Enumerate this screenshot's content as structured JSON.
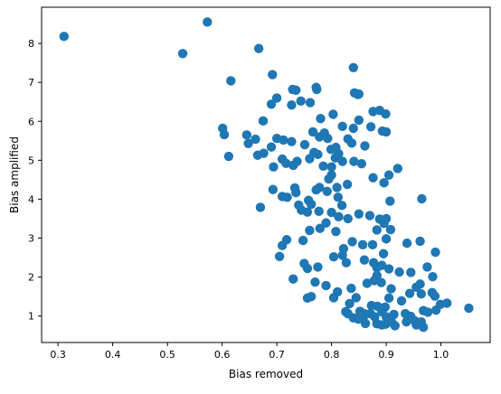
{
  "chart_data": {
    "type": "scatter",
    "title": "",
    "xlabel": "Bias removed",
    "ylabel": "Bias amplified",
    "xlim": [
      0.27,
      1.09
    ],
    "ylim": [
      0.32,
      8.93
    ],
    "xticks": [
      0.3,
      0.4,
      0.5,
      0.6,
      0.7,
      0.8,
      0.9,
      1.0
    ],
    "xtick_labels": [
      "0.3",
      "0.4",
      "0.5",
      "0.6",
      "0.7",
      "0.8",
      "0.9",
      "1.0"
    ],
    "yticks": [
      1,
      2,
      3,
      4,
      5,
      6,
      7,
      8
    ],
    "ytick_labels": [
      "1",
      "2",
      "3",
      "4",
      "5",
      "6",
      "7",
      "8"
    ],
    "grid": false,
    "legend": "none",
    "marker_color": "#1f77b4",
    "series": [
      {
        "points": [
          [
            0.311,
            8.18
          ],
          [
            0.528,
            7.74
          ],
          [
            0.573,
            8.55
          ],
          [
            0.667,
            7.87
          ],
          [
            0.616,
            7.04
          ],
          [
            0.692,
            7.2
          ],
          [
            0.7,
            6.6
          ],
          [
            0.729,
            6.82
          ],
          [
            0.735,
            6.8
          ],
          [
            0.744,
            6.52
          ],
          [
            0.772,
            6.87
          ],
          [
            0.773,
            6.82
          ],
          [
            0.675,
            6.01
          ],
          [
            0.69,
            6.44
          ],
          [
            0.727,
            6.42
          ],
          [
            0.761,
            6.48
          ],
          [
            0.78,
            6.07
          ],
          [
            0.803,
            6.18
          ],
          [
            0.84,
            7.38
          ],
          [
            0.842,
            6.73
          ],
          [
            0.848,
            6.69
          ],
          [
            0.85,
            6.7
          ],
          [
            0.876,
            6.25
          ],
          [
            0.888,
            6.28
          ],
          [
            0.899,
            6.19
          ],
          [
            0.893,
            5.75
          ],
          [
            0.9,
            5.73
          ],
          [
            0.82,
            5.87
          ],
          [
            0.84,
            5.82
          ],
          [
            0.85,
            6.03
          ],
          [
            0.872,
            5.86
          ],
          [
            0.601,
            5.82
          ],
          [
            0.604,
            5.66
          ],
          [
            0.645,
            5.65
          ],
          [
            0.648,
            5.43
          ],
          [
            0.661,
            5.54
          ],
          [
            0.69,
            5.34
          ],
          [
            0.7,
            5.56
          ],
          [
            0.712,
            5.52
          ],
          [
            0.727,
            5.48
          ],
          [
            0.751,
            5.4
          ],
          [
            0.766,
            5.73
          ],
          [
            0.778,
            5.6
          ],
          [
            0.787,
            5.7
          ],
          [
            0.793,
            5.56
          ],
          [
            0.799,
            5.28
          ],
          [
            0.808,
            5.33
          ],
          [
            0.83,
            5.55
          ],
          [
            0.837,
            5.44
          ],
          [
            0.861,
            5.37
          ],
          [
            0.612,
            5.1
          ],
          [
            0.665,
            5.13
          ],
          [
            0.676,
            5.18
          ],
          [
            0.694,
            4.83
          ],
          [
            0.71,
            5.03
          ],
          [
            0.717,
            4.92
          ],
          [
            0.73,
            4.87
          ],
          [
            0.737,
            4.97
          ],
          [
            0.76,
            5.04
          ],
          [
            0.768,
            5.2
          ],
          [
            0.775,
            5.15
          ],
          [
            0.785,
            4.85
          ],
          [
            0.8,
            4.83
          ],
          [
            0.807,
            5.06
          ],
          [
            0.813,
            5.17
          ],
          [
            0.82,
            4.97
          ],
          [
            0.841,
            4.97
          ],
          [
            0.855,
            4.91
          ],
          [
            0.876,
            4.55
          ],
          [
            0.896,
            4.42
          ],
          [
            0.905,
            4.62
          ],
          [
            0.921,
            4.79
          ],
          [
            0.693,
            4.25
          ],
          [
            0.71,
            4.07
          ],
          [
            0.719,
            4.05
          ],
          [
            0.733,
            4.29
          ],
          [
            0.735,
            4.17
          ],
          [
            0.74,
            3.85
          ],
          [
            0.758,
            3.97
          ],
          [
            0.763,
            3.87
          ],
          [
            0.772,
            4.24
          ],
          [
            0.778,
            4.3
          ],
          [
            0.792,
            4.2
          ],
          [
            0.795,
            4.52
          ],
          [
            0.8,
            4.62
          ],
          [
            0.81,
            4.3
          ],
          [
            0.812,
            4.05
          ],
          [
            0.819,
            3.84
          ],
          [
            0.829,
            4.38
          ],
          [
            0.67,
            3.79
          ],
          [
            0.745,
            3.72
          ],
          [
            0.756,
            3.67
          ],
          [
            0.777,
            3.69
          ],
          [
            0.8,
            3.66
          ],
          [
            0.813,
            3.55
          ],
          [
            0.83,
            3.5
          ],
          [
            0.85,
            3.62
          ],
          [
            0.87,
            3.58
          ],
          [
            0.883,
            3.21
          ],
          [
            0.888,
            3.49
          ],
          [
            0.896,
            3.38
          ],
          [
            0.9,
            3.5
          ],
          [
            0.907,
            3.95
          ],
          [
            0.965,
            4.01
          ],
          [
            0.718,
            2.96
          ],
          [
            0.71,
            2.81
          ],
          [
            0.705,
            2.53
          ],
          [
            0.748,
            2.94
          ],
          [
            0.76,
            3.2
          ],
          [
            0.779,
            3.25
          ],
          [
            0.79,
            3.39
          ],
          [
            0.808,
            3.17
          ],
          [
            0.822,
            2.73
          ],
          [
            0.82,
            2.56
          ],
          [
            0.838,
            2.91
          ],
          [
            0.857,
            2.83
          ],
          [
            0.875,
            2.83
          ],
          [
            0.895,
            2.6
          ],
          [
            0.9,
            2.98
          ],
          [
            0.908,
            3.22
          ],
          [
            0.938,
            2.87
          ],
          [
            0.962,
            2.92
          ],
          [
            0.75,
            2.35
          ],
          [
            0.756,
            2.22
          ],
          [
            0.775,
            2.26
          ],
          [
            0.804,
            2.52
          ],
          [
            0.827,
            2.37
          ],
          [
            0.86,
            2.44
          ],
          [
            0.877,
            2.37
          ],
          [
            0.883,
            2.24
          ],
          [
            0.892,
            2.3
          ],
          [
            0.905,
            2.21
          ],
          [
            0.924,
            2.13
          ],
          [
            0.945,
            2.12
          ],
          [
            0.975,
            2.26
          ],
          [
            0.99,
            2.64
          ],
          [
            0.73,
            1.95
          ],
          [
            0.77,
            1.87
          ],
          [
            0.79,
            1.78
          ],
          [
            0.811,
            1.62
          ],
          [
            0.836,
            1.71
          ],
          [
            0.865,
            1.84
          ],
          [
            0.878,
            1.91
          ],
          [
            0.883,
            2.04
          ],
          [
            0.891,
            1.86
          ],
          [
            0.909,
            1.7
          ],
          [
            0.955,
            1.74
          ],
          [
            0.962,
            1.82
          ],
          [
            0.985,
            2.01
          ],
          [
            0.756,
            1.46
          ],
          [
            0.763,
            1.5
          ],
          [
            0.804,
            1.47
          ],
          [
            0.833,
            1.32
          ],
          [
            0.845,
            1.47
          ],
          [
            0.873,
            1.27
          ],
          [
            0.884,
            1.25
          ],
          [
            0.898,
            1.23
          ],
          [
            0.905,
            1.46
          ],
          [
            0.928,
            1.39
          ],
          [
            0.943,
            1.58
          ],
          [
            0.964,
            1.57
          ],
          [
            0.984,
            1.6
          ],
          [
            0.989,
            1.51
          ],
          [
            0.999,
            1.3
          ],
          [
            1.011,
            1.33
          ],
          [
            1.051,
            1.2
          ],
          [
            0.826,
            1.11
          ],
          [
            0.83,
            1.06
          ],
          [
            0.852,
            1.12
          ],
          [
            0.858,
            0.96
          ],
          [
            0.86,
            1.06
          ],
          [
            0.871,
            1.06
          ],
          [
            0.879,
            0.98
          ],
          [
            0.892,
            1.11
          ],
          [
            0.9,
            0.98
          ],
          [
            0.914,
            1.04
          ],
          [
            0.935,
            1.06
          ],
          [
            0.945,
            0.99
          ],
          [
            0.968,
            1.14
          ],
          [
            0.976,
            1.1
          ],
          [
            0.991,
            1.15
          ],
          [
            0.84,
            0.95
          ],
          [
            0.849,
            0.92
          ],
          [
            0.862,
            0.81
          ],
          [
            0.883,
            0.8
          ],
          [
            0.892,
            0.77
          ],
          [
            0.899,
            0.79
          ],
          [
            0.91,
            0.84
          ],
          [
            0.916,
            0.75
          ],
          [
            0.937,
            0.85
          ],
          [
            0.952,
            0.88
          ],
          [
            0.955,
            0.77
          ],
          [
            0.964,
            0.85
          ],
          [
            0.968,
            0.71
          ]
        ]
      }
    ]
  }
}
